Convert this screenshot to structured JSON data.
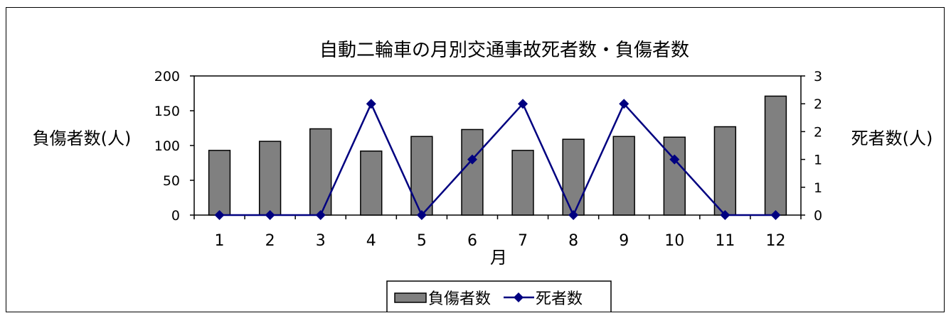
{
  "chart_data": {
    "type": "bar",
    "title": "自動二輪車の月別交通事故死者数・負傷者数",
    "xlabel": "月",
    "ylabel": "負傷者数(人)",
    "y2label": "死者数(人)",
    "categories": [
      "1",
      "2",
      "3",
      "4",
      "5",
      "6",
      "7",
      "8",
      "9",
      "10",
      "11",
      "12"
    ],
    "ylim": [
      0,
      200
    ],
    "y2lim": [
      0,
      2.5
    ],
    "yticks": [
      0,
      50,
      100,
      150,
      200
    ],
    "y2ticks": [
      0,
      0.5,
      1,
      1.5,
      2,
      2.5
    ],
    "y2ticklabels": [
      "0",
      "1",
      "1",
      "2",
      "2",
      "3"
    ],
    "series": [
      {
        "name": "負傷者数",
        "type": "bar",
        "axis": "left",
        "color": "#808080",
        "values": [
          93,
          106,
          124,
          92,
          113,
          123,
          93,
          109,
          113,
          112,
          127,
          171
        ]
      },
      {
        "name": "死者数",
        "type": "line",
        "axis": "right",
        "color": "#000080",
        "values": [
          0,
          0,
          0,
          2,
          0,
          1,
          2,
          0,
          2,
          1,
          0,
          0
        ]
      }
    ],
    "grid": false,
    "legend": "bottom"
  }
}
